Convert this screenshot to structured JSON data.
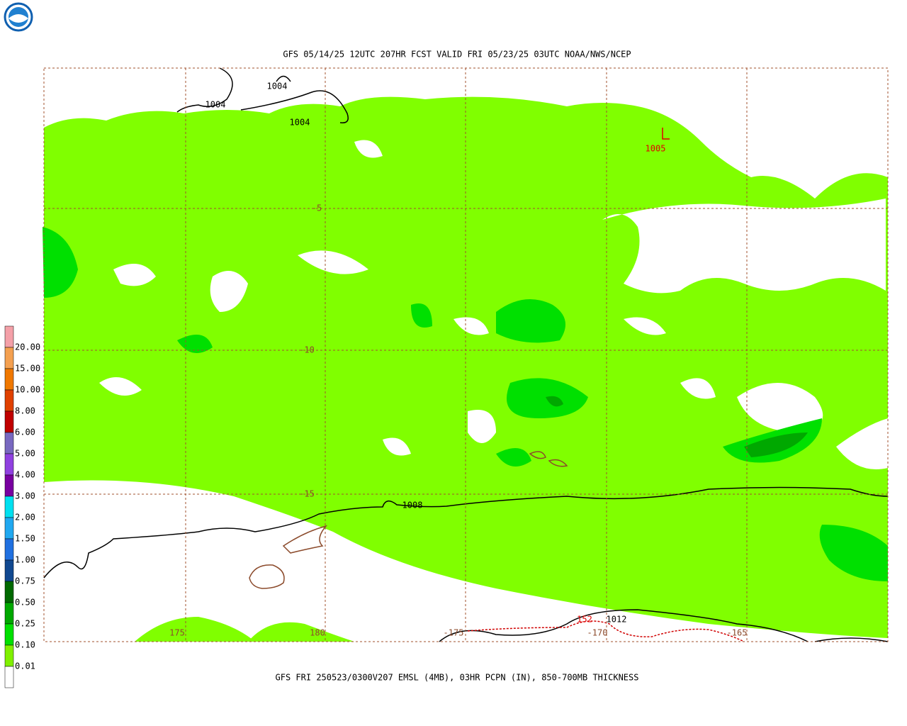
{
  "header": {
    "title": "GFS 05/14/25 12UTC 207HR FCST VALID FRI 05/23/25 03UTC NOAA/NWS/NCEP"
  },
  "footer": {
    "caption": "GFS FRI 250523/0300V207 EMSL (4MB), 03HR PCPN (IN), 850-700MB THICKNESS"
  },
  "map": {
    "latitude_labels": [
      "-5",
      "-10",
      "-15"
    ],
    "longitude_labels": [
      "175",
      "180",
      "-175",
      "-170",
      "-165"
    ],
    "pressure_labels": [
      "1004",
      "1004",
      "1004",
      "1008",
      "1012"
    ],
    "low_center": {
      "symbol": "L",
      "value": "1005"
    },
    "thickness_label": "152"
  },
  "legend": {
    "labels": [
      "20.00",
      "15.00",
      "10.00",
      "8.00",
      "6.00",
      "5.00",
      "4.00",
      "3.00",
      "2.00",
      "1.50",
      "1.00",
      "0.75",
      "0.50",
      "0.25",
      "0.10",
      "0.01"
    ],
    "colors": [
      "#f4a0a8",
      "#f4a050",
      "#f07800",
      "#e04000",
      "#c00000",
      "#7868c0",
      "#9040e0",
      "#7800a0",
      "#00e0f0",
      "#20a8f0",
      "#2070e0",
      "#104890",
      "#006800",
      "#00a800",
      "#00e000",
      "#80f000",
      "#ffffff"
    ]
  }
}
